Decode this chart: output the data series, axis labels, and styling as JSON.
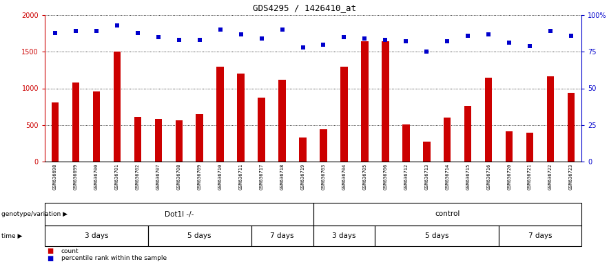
{
  "title": "GDS4295 / 1426410_at",
  "samples": [
    "GSM636698",
    "GSM636699",
    "GSM636700",
    "GSM636701",
    "GSM636702",
    "GSM636707",
    "GSM636708",
    "GSM636709",
    "GSM636710",
    "GSM636711",
    "GSM636717",
    "GSM636718",
    "GSM636719",
    "GSM636703",
    "GSM636704",
    "GSM636705",
    "GSM636706",
    "GSM636712",
    "GSM636713",
    "GSM636714",
    "GSM636715",
    "GSM636716",
    "GSM636720",
    "GSM636721",
    "GSM636722",
    "GSM636723"
  ],
  "counts": [
    810,
    1080,
    960,
    1500,
    610,
    580,
    560,
    650,
    1300,
    1200,
    870,
    1120,
    330,
    440,
    1300,
    1640,
    1640,
    510,
    270,
    600,
    760,
    1150,
    410,
    390,
    1160,
    940
  ],
  "percentile_ranks": [
    88,
    89,
    89,
    93,
    88,
    85,
    83,
    83,
    90,
    87,
    84,
    90,
    78,
    80,
    85,
    84,
    83,
    82,
    75,
    82,
    86,
    87,
    81,
    79,
    89,
    86
  ],
  "bar_color": "#cc0000",
  "dot_color": "#0000cc",
  "ylim_left": [
    0,
    2000
  ],
  "ylim_right": [
    0,
    100
  ],
  "yticks_left": [
    0,
    500,
    1000,
    1500,
    2000
  ],
  "yticks_right": [
    0,
    25,
    50,
    75,
    100
  ],
  "chart_bg": "#ffffff",
  "genotype_groups": [
    {
      "label": "Dot1l -/-",
      "start": 0,
      "end": 12,
      "color": "#aaeebb"
    },
    {
      "label": "control",
      "start": 13,
      "end": 25,
      "color": "#55dd77"
    }
  ],
  "time_groups": [
    {
      "label": "3 days",
      "start": 0,
      "end": 4,
      "color": "#ee99ee"
    },
    {
      "label": "5 days",
      "start": 5,
      "end": 9,
      "color": "#cc55cc"
    },
    {
      "label": "7 days",
      "start": 10,
      "end": 12,
      "color": "#ee99ee"
    },
    {
      "label": "3 days",
      "start": 13,
      "end": 15,
      "color": "#ee99ee"
    },
    {
      "label": "5 days",
      "start": 16,
      "end": 21,
      "color": "#cc55cc"
    },
    {
      "label": "7 days",
      "start": 22,
      "end": 25,
      "color": "#ee99ee"
    }
  ],
  "genotype_label": "genotype/variation",
  "time_label": "time",
  "legend": [
    {
      "label": "count",
      "color": "#cc0000"
    },
    {
      "label": "percentile rank within the sample",
      "color": "#0000cc"
    }
  ]
}
